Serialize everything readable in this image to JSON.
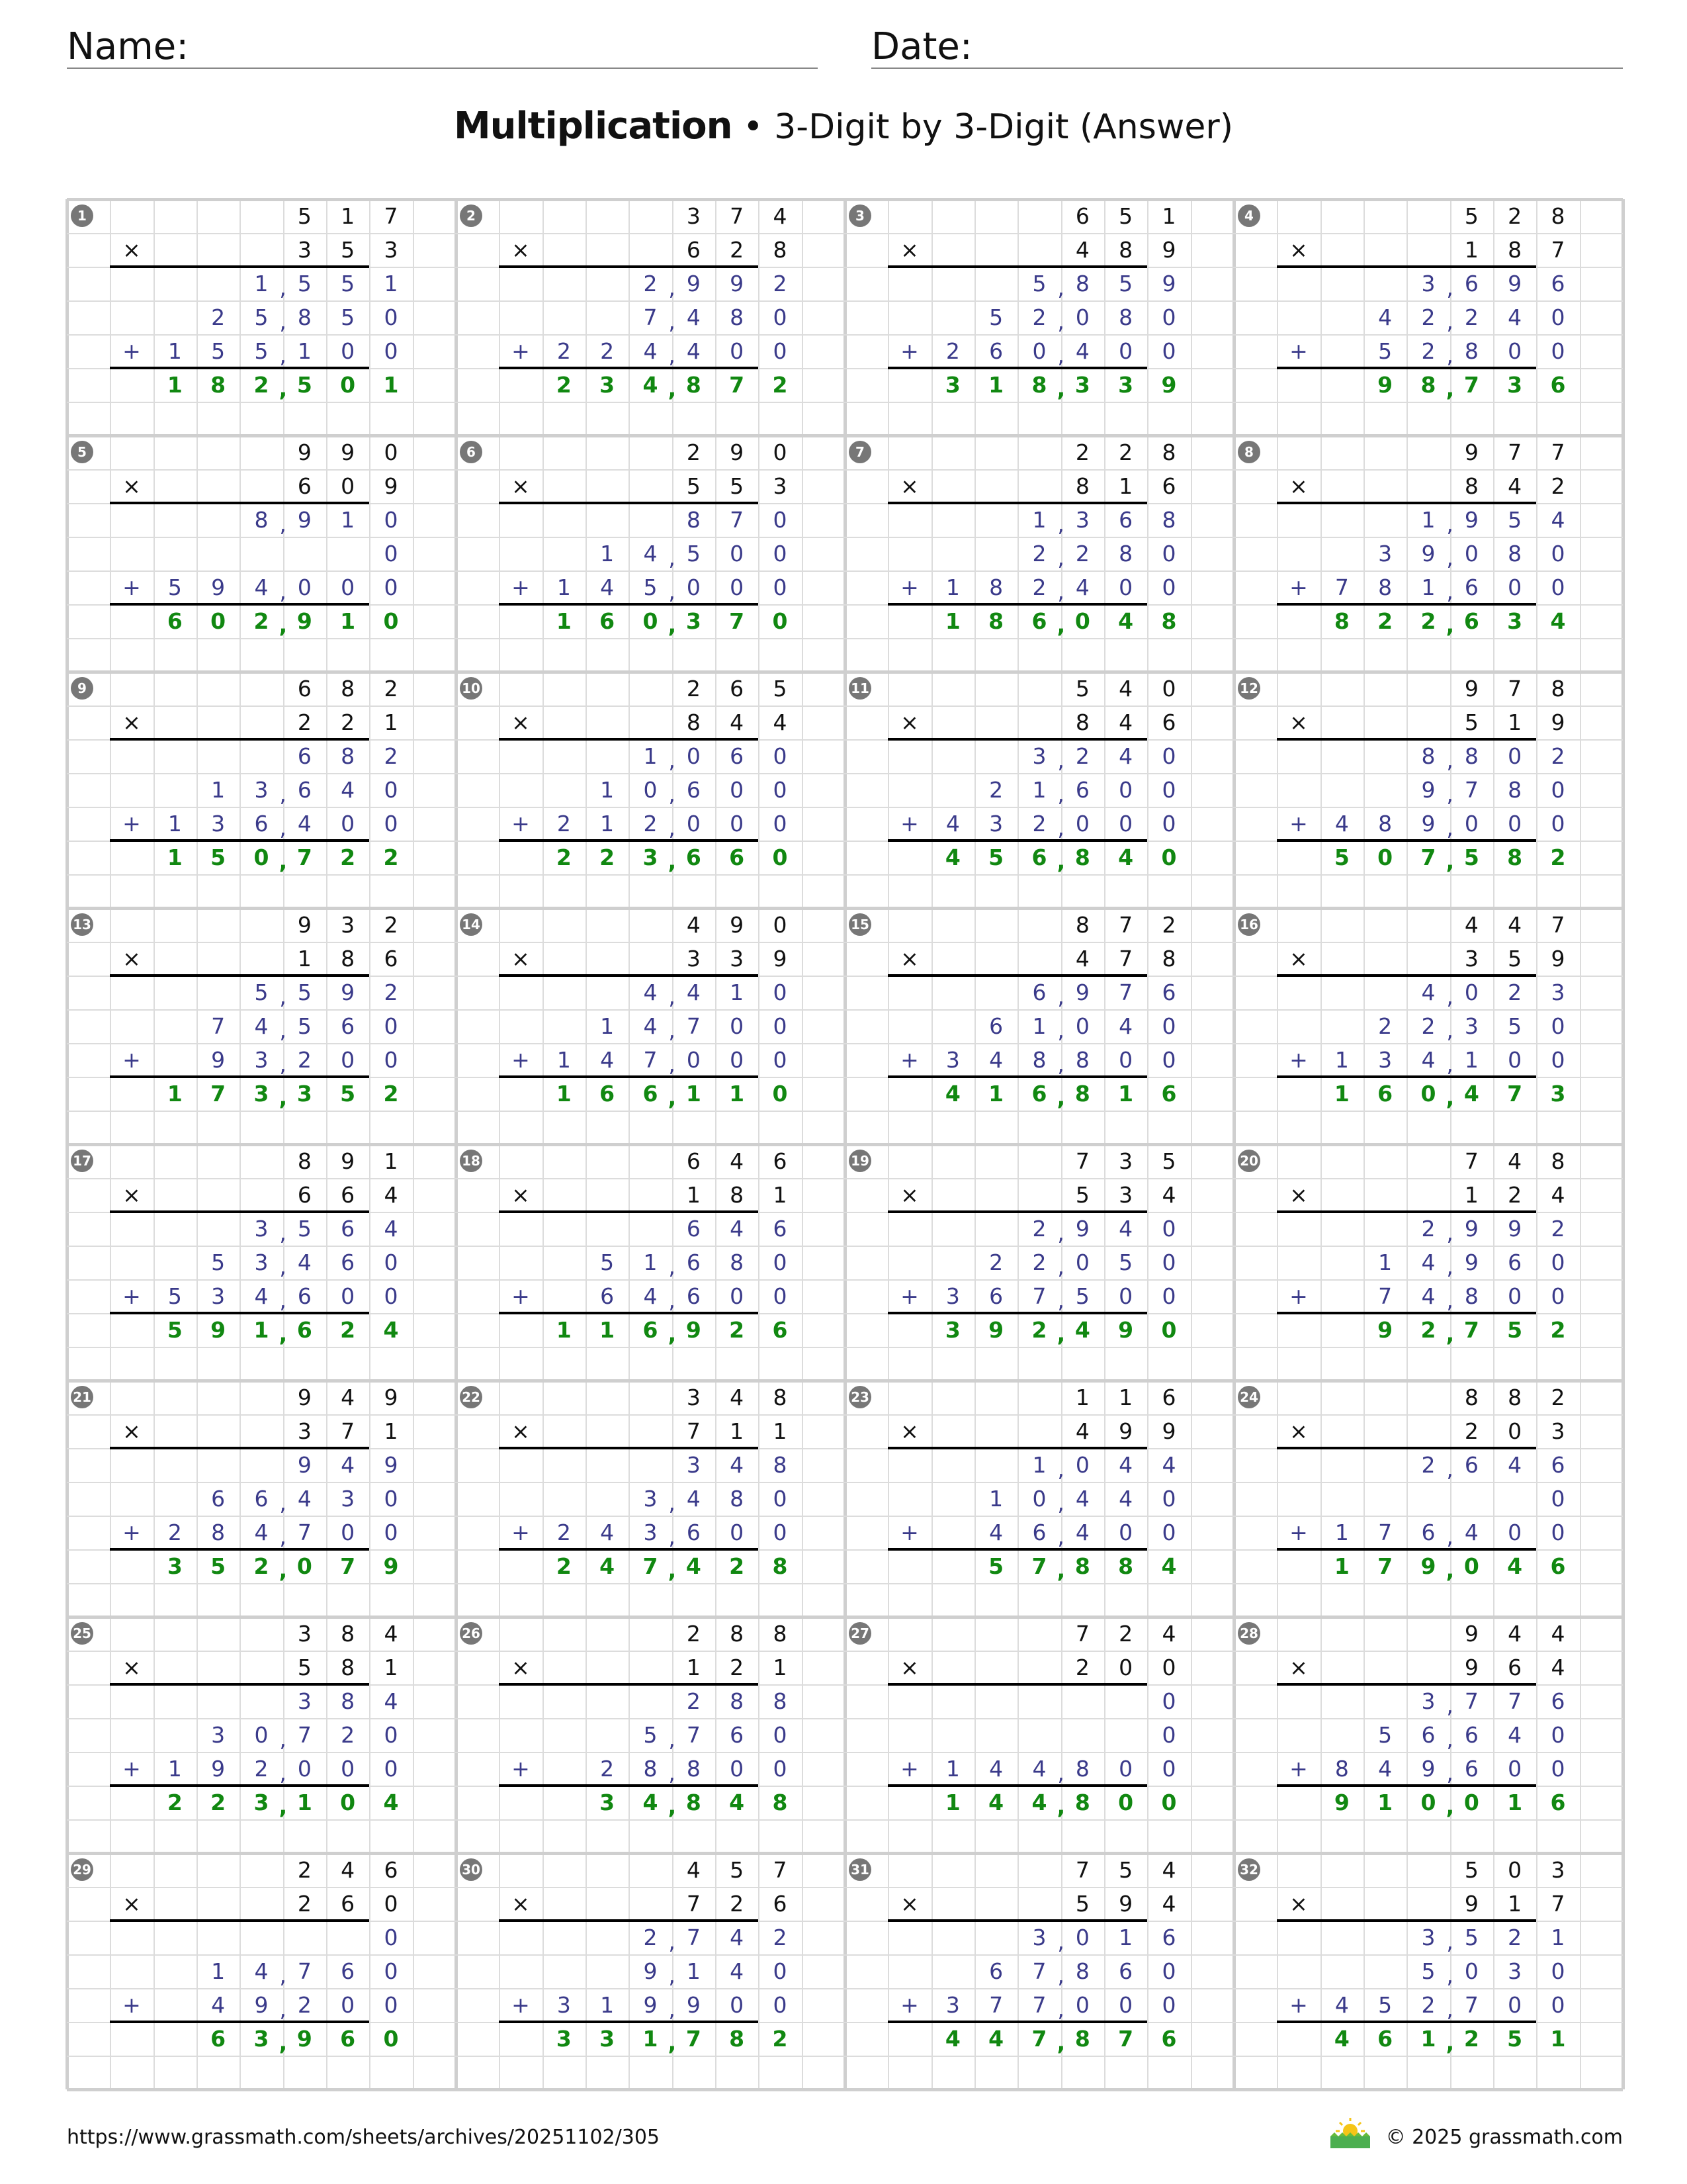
{
  "header": {
    "name_label": "Name:",
    "date_label": "Date:"
  },
  "title": {
    "main": "Multiplication",
    "sub": " • 3-Digit by 3-Digit (Answer)"
  },
  "symbols": {
    "times": "×",
    "plus": "+"
  },
  "colors": {
    "operands": "#111111",
    "partials": "#3a3a8a",
    "answer": "#118811",
    "badge": "#777777"
  },
  "problems": [
    {
      "n": "1",
      "a": "517",
      "b": "353",
      "p": [
        "1,551",
        "25,850",
        "155,100"
      ],
      "ans": "182,501"
    },
    {
      "n": "2",
      "a": "374",
      "b": "628",
      "p": [
        "2,992",
        "7,480",
        "224,400"
      ],
      "ans": "234,872"
    },
    {
      "n": "3",
      "a": "651",
      "b": "489",
      "p": [
        "5,859",
        "52,080",
        "260,400"
      ],
      "ans": "318,339"
    },
    {
      "n": "4",
      "a": "528",
      "b": "187",
      "p": [
        "3,696",
        "42,240",
        "52,800"
      ],
      "ans": "98,736"
    },
    {
      "n": "5",
      "a": "990",
      "b": "609",
      "p": [
        "8,910",
        "0",
        "594,000"
      ],
      "ans": "602,910"
    },
    {
      "n": "6",
      "a": "290",
      "b": "553",
      "p": [
        "870",
        "14,500",
        "145,000"
      ],
      "ans": "160,370"
    },
    {
      "n": "7",
      "a": "228",
      "b": "816",
      "p": [
        "1,368",
        "2,280",
        "182,400"
      ],
      "ans": "186,048"
    },
    {
      "n": "8",
      "a": "977",
      "b": "842",
      "p": [
        "1,954",
        "39,080",
        "781,600"
      ],
      "ans": "822,634"
    },
    {
      "n": "9",
      "a": "682",
      "b": "221",
      "p": [
        "682",
        "13,640",
        "136,400"
      ],
      "ans": "150,722"
    },
    {
      "n": "10",
      "a": "265",
      "b": "844",
      "p": [
        "1,060",
        "10,600",
        "212,000"
      ],
      "ans": "223,660"
    },
    {
      "n": "11",
      "a": "540",
      "b": "846",
      "p": [
        "3,240",
        "21,600",
        "432,000"
      ],
      "ans": "456,840"
    },
    {
      "n": "12",
      "a": "978",
      "b": "519",
      "p": [
        "8,802",
        "9,780",
        "489,000"
      ],
      "ans": "507,582"
    },
    {
      "n": "13",
      "a": "932",
      "b": "186",
      "p": [
        "5,592",
        "74,560",
        "93,200"
      ],
      "ans": "173,352"
    },
    {
      "n": "14",
      "a": "490",
      "b": "339",
      "p": [
        "4,410",
        "14,700",
        "147,000"
      ],
      "ans": "166,110"
    },
    {
      "n": "15",
      "a": "872",
      "b": "478",
      "p": [
        "6,976",
        "61,040",
        "348,800"
      ],
      "ans": "416,816"
    },
    {
      "n": "16",
      "a": "447",
      "b": "359",
      "p": [
        "4,023",
        "22,350",
        "134,100"
      ],
      "ans": "160,473"
    },
    {
      "n": "17",
      "a": "891",
      "b": "664",
      "p": [
        "3,564",
        "53,460",
        "534,600"
      ],
      "ans": "591,624"
    },
    {
      "n": "18",
      "a": "646",
      "b": "181",
      "p": [
        "646",
        "51,680",
        "64,600"
      ],
      "ans": "116,926"
    },
    {
      "n": "19",
      "a": "735",
      "b": "534",
      "p": [
        "2,940",
        "22,050",
        "367,500"
      ],
      "ans": "392,490"
    },
    {
      "n": "20",
      "a": "748",
      "b": "124",
      "p": [
        "2,992",
        "14,960",
        "74,800"
      ],
      "ans": "92,752"
    },
    {
      "n": "21",
      "a": "949",
      "b": "371",
      "p": [
        "949",
        "66,430",
        "284,700"
      ],
      "ans": "352,079"
    },
    {
      "n": "22",
      "a": "348",
      "b": "711",
      "p": [
        "348",
        "3,480",
        "243,600"
      ],
      "ans": "247,428"
    },
    {
      "n": "23",
      "a": "116",
      "b": "499",
      "p": [
        "1,044",
        "10,440",
        "46,400"
      ],
      "ans": "57,884"
    },
    {
      "n": "24",
      "a": "882",
      "b": "203",
      "p": [
        "2,646",
        "0",
        "176,400"
      ],
      "ans": "179,046"
    },
    {
      "n": "25",
      "a": "384",
      "b": "581",
      "p": [
        "384",
        "30,720",
        "192,000"
      ],
      "ans": "223,104"
    },
    {
      "n": "26",
      "a": "288",
      "b": "121",
      "p": [
        "288",
        "5,760",
        "28,800"
      ],
      "ans": "34,848"
    },
    {
      "n": "27",
      "a": "724",
      "b": "200",
      "p": [
        "0",
        "0",
        "144,800"
      ],
      "ans": "144,800"
    },
    {
      "n": "28",
      "a": "944",
      "b": "964",
      "p": [
        "3,776",
        "56,640",
        "849,600"
      ],
      "ans": "910,016"
    },
    {
      "n": "29",
      "a": "246",
      "b": "260",
      "p": [
        "0",
        "14,760",
        "49,200"
      ],
      "ans": "63,960"
    },
    {
      "n": "30",
      "a": "457",
      "b": "726",
      "p": [
        "2,742",
        "9,140",
        "319,900"
      ],
      "ans": "331,782"
    },
    {
      "n": "31",
      "a": "754",
      "b": "594",
      "p": [
        "3,016",
        "67,860",
        "377,000"
      ],
      "ans": "447,876"
    },
    {
      "n": "32",
      "a": "503",
      "b": "917",
      "p": [
        "3,521",
        "5,030",
        "452,700"
      ],
      "ans": "461,251"
    }
  ],
  "footer": {
    "url": "https://www.grassmath.com/sheets/archives/20251102/305",
    "copyright": "© 2025 grassmath.com",
    "logo_icon": "sun-over-grass"
  }
}
